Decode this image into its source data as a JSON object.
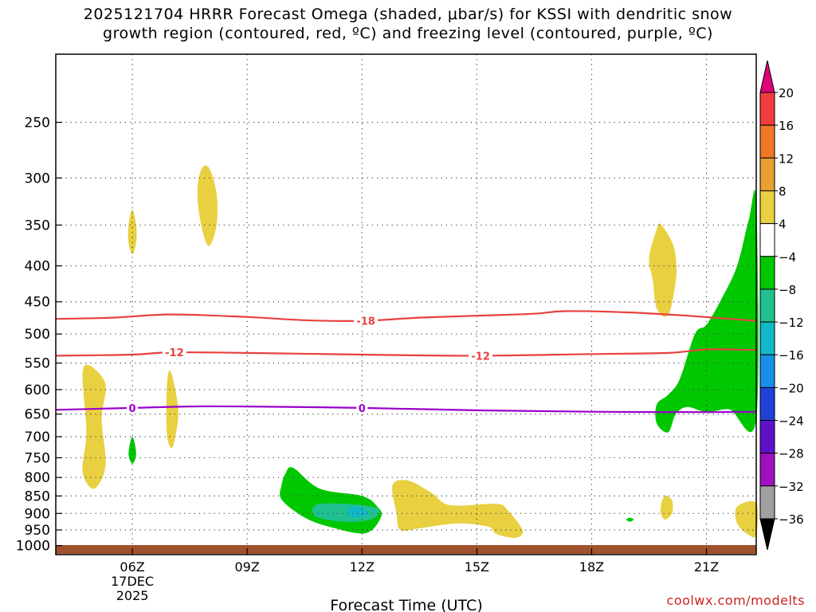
{
  "title_line1": "2025121704 HRRR Forecast Omega (shaded, μbar/s) for KSSI with dendritic snow",
  "title_line2": "growth region (contoured, red, ºC) and freezing level (contoured, purple, ºC)",
  "credit": "coolwx.com/modelts",
  "chart_data": {
    "type": "contour",
    "xlabel": "Forecast Time (UTC)",
    "ylabel": "",
    "x_range_hours_utc": [
      4.0,
      22.3
    ],
    "x_ticks": [
      {
        "hour": 6,
        "label": "06Z",
        "sub": [
          "17DEC",
          "2025"
        ]
      },
      {
        "hour": 9,
        "label": "09Z"
      },
      {
        "hour": 12,
        "label": "12Z"
      },
      {
        "hour": 15,
        "label": "15Z"
      },
      {
        "hour": 18,
        "label": "18Z"
      },
      {
        "hour": 21,
        "label": "21Z"
      }
    ],
    "y_scale": "log-pressure",
    "y_range_hpa": [
      200,
      1030
    ],
    "y_ticks": [
      250,
      300,
      350,
      400,
      450,
      500,
      550,
      600,
      650,
      700,
      750,
      800,
      850,
      900,
      950,
      1000
    ],
    "grid": true,
    "ground_color": "#a0522d",
    "colorbar": {
      "labels": [
        "20",
        "16",
        "12",
        "8",
        "4",
        "−4",
        "−8",
        "−12",
        "−16",
        "−20",
        "−24",
        "−28",
        "−32",
        "−36"
      ],
      "colors": [
        "#f03c3c",
        "#f07828",
        "#e8a030",
        "#e8d040",
        "#ffffff",
        "#00c800",
        "#20c090",
        "#10b8c8",
        "#1890e8",
        "#2040d8",
        "#6010c8",
        "#a010c0",
        "#a0a0a0"
      ],
      "top_arrow_color": "#e0007a",
      "bottom_arrow_color": "#000000"
    },
    "contours": [
      {
        "label": "-18",
        "color": "#e84040",
        "label_hour": 12.1,
        "points": [
          [
            4.0,
            476
          ],
          [
            5.5,
            474
          ],
          [
            7.0,
            469
          ],
          [
            9.0,
            473
          ],
          [
            10.5,
            478
          ],
          [
            12.0,
            479
          ],
          [
            13.5,
            474
          ],
          [
            15.0,
            471
          ],
          [
            16.5,
            468
          ],
          [
            17.3,
            464
          ],
          [
            19.0,
            466
          ],
          [
            20.5,
            471
          ],
          [
            22.3,
            479
          ]
        ]
      },
      {
        "label": "-12",
        "color": "#e84040",
        "label_hour": 7.1,
        "points": [
          [
            4.0,
            537
          ],
          [
            6.0,
            535
          ],
          [
            7.0,
            531
          ],
          [
            9.0,
            532
          ],
          [
            12.0,
            535
          ],
          [
            15.0,
            537
          ],
          [
            18.0,
            534
          ],
          [
            20.0,
            532
          ],
          [
            21.0,
            526
          ],
          [
            22.3,
            527
          ]
        ]
      },
      {
        "label": "-12",
        "color": "#e84040",
        "label_hour": 15.1,
        "points": []
      },
      {
        "label": "0",
        "color": "#9900cc",
        "label_hour": 6.0,
        "points": [
          [
            4.0,
            641
          ],
          [
            6.0,
            637
          ],
          [
            7.5,
            634
          ],
          [
            9.0,
            634
          ],
          [
            12.0,
            637
          ],
          [
            15.0,
            642
          ],
          [
            18.0,
            645
          ],
          [
            21.0,
            646
          ],
          [
            22.3,
            645
          ]
        ]
      },
      {
        "label": "0",
        "color": "#9900cc",
        "label_hour": 12.0,
        "points": []
      }
    ],
    "shaded_regions": [
      {
        "value_min": 4,
        "color": "#e8d040",
        "points": [
          [
            5.9,
            350
          ],
          [
            6.0,
            333
          ],
          [
            6.1,
            350
          ],
          [
            6.1,
            370
          ],
          [
            6.0,
            385
          ],
          [
            5.9,
            370
          ]
        ]
      },
      {
        "value_min": 4,
        "color": "#e8d040",
        "points": [
          [
            7.8,
            292
          ],
          [
            8.0,
            290
          ],
          [
            8.2,
            315
          ],
          [
            8.2,
            350
          ],
          [
            8.0,
            375
          ],
          [
            7.8,
            350
          ],
          [
            7.7,
            315
          ]
        ]
      },
      {
        "value_min": 4,
        "color": "#e8d040",
        "points": [
          [
            4.7,
            570
          ],
          [
            4.9,
            555
          ],
          [
            5.3,
            590
          ],
          [
            5.2,
            660
          ],
          [
            5.3,
            770
          ],
          [
            5.0,
            830
          ],
          [
            4.7,
            785
          ],
          [
            4.8,
            690
          ]
        ]
      },
      {
        "value_min": 4,
        "color": "#e8d040",
        "points": [
          [
            6.9,
            595
          ],
          [
            7.0,
            565
          ],
          [
            7.2,
            640
          ],
          [
            7.1,
            710
          ],
          [
            7.0,
            725
          ],
          [
            6.9,
            690
          ]
        ]
      },
      {
        "value_min": 4,
        "color": "#e8d040",
        "points": [
          [
            19.5,
            390
          ],
          [
            19.7,
            355
          ],
          [
            19.8,
            349
          ],
          [
            20.1,
            370
          ],
          [
            20.2,
            390
          ],
          [
            20.2,
            420
          ],
          [
            20.0,
            470
          ],
          [
            19.7,
            460
          ],
          [
            19.6,
            420
          ]
        ]
      },
      {
        "value_min": 4,
        "color": "#e8d040",
        "points": [
          [
            12.8,
            820
          ],
          [
            13.2,
            808
          ],
          [
            13.8,
            840
          ],
          [
            14.3,
            876
          ],
          [
            15.5,
            872
          ],
          [
            15.8,
            890
          ],
          [
            16.2,
            952
          ],
          [
            16.0,
            975
          ],
          [
            15.5,
            962
          ],
          [
            15.3,
            940
          ],
          [
            14.5,
            930
          ],
          [
            13.5,
            945
          ],
          [
            13.0,
            950
          ],
          [
            12.9,
            900
          ]
        ]
      },
      {
        "value_min": 4,
        "color": "#e8d040",
        "points": [
          [
            19.9,
            850
          ],
          [
            20.1,
            862
          ],
          [
            20.1,
            900
          ],
          [
            19.9,
            918
          ],
          [
            19.8,
            890
          ]
        ]
      },
      {
        "value_min": 4,
        "color": "#e8d040",
        "points": [
          [
            21.8,
            880
          ],
          [
            22.3,
            870
          ],
          [
            22.3,
            965
          ],
          [
            22.1,
            965
          ],
          [
            21.8,
            930
          ]
        ]
      },
      {
        "value_min": -8,
        "color": "#00c800",
        "points": [
          [
            6.0,
            700
          ],
          [
            6.1,
            740
          ],
          [
            6.0,
            765
          ],
          [
            5.9,
            740
          ]
        ]
      },
      {
        "value_min": -8,
        "color": "#00c800",
        "points": [
          [
            10.0,
            790
          ],
          [
            10.2,
            775
          ],
          [
            10.9,
            830
          ],
          [
            12.0,
            850
          ],
          [
            12.4,
            880
          ],
          [
            12.5,
            910
          ],
          [
            12.1,
            960
          ],
          [
            11.2,
            942
          ],
          [
            10.5,
            912
          ],
          [
            9.9,
            860
          ],
          [
            9.9,
            820
          ]
        ]
      },
      {
        "value_min": -12,
        "color": "#20c090",
        "points": [
          [
            10.8,
            875
          ],
          [
            11.6,
            872
          ],
          [
            12.4,
            885
          ],
          [
            12.3,
            915
          ],
          [
            11.6,
            925
          ],
          [
            10.8,
            910
          ]
        ]
      },
      {
        "value_min": -16,
        "color": "#10b8c8",
        "points": [
          [
            11.7,
            882
          ],
          [
            12.1,
            888
          ],
          [
            12.1,
            906
          ],
          [
            11.7,
            910
          ]
        ]
      },
      {
        "value_min": -8,
        "color": "#00c800",
        "points": [
          [
            18.9,
            918
          ],
          [
            19.0,
            913
          ],
          [
            19.1,
            918
          ],
          [
            19.0,
            925
          ]
        ]
      },
      {
        "value_min": -8,
        "color": "#00c800",
        "points": [
          [
            22.3,
            325
          ],
          [
            22.3,
            660
          ],
          [
            21.6,
            640
          ],
          [
            21.0,
            646
          ],
          [
            20.5,
            635
          ],
          [
            20.2,
            650
          ],
          [
            20.0,
            690
          ],
          [
            19.7,
            670
          ],
          [
            19.7,
            630
          ],
          [
            20.0,
            610
          ],
          [
            20.3,
            580
          ],
          [
            20.7,
            500
          ],
          [
            21.0,
            485
          ],
          [
            21.4,
            445
          ],
          [
            21.8,
            400
          ],
          [
            22.1,
            345
          ]
        ]
      }
    ]
  }
}
